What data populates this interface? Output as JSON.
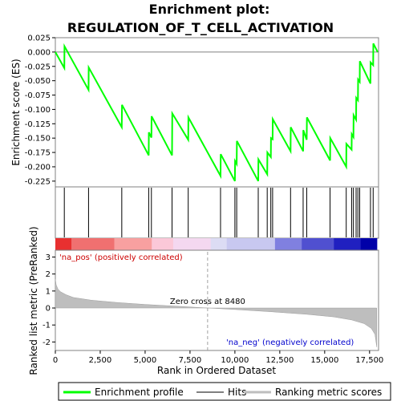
{
  "chart_data": {
    "type": "line",
    "title_line1": "Enrichment plot:",
    "title_line2": "REGULATION_OF_T_CELL_ACTIVATION",
    "top_panel": {
      "ylabel": "Enrichment score (ES)",
      "ylim": [
        -0.235,
        0.025
      ],
      "yticks": [
        0.025,
        0.0,
        -0.025,
        -0.05,
        -0.075,
        -0.1,
        -0.125,
        -0.15,
        -0.175,
        -0.2,
        -0.225
      ],
      "ytick_labels": [
        "0.025",
        "0.000",
        "-0.025",
        "-0.050",
        "-0.075",
        "-0.100",
        "-0.125",
        "-0.150",
        "-0.175",
        "-0.200",
        "-0.225"
      ],
      "series": [
        {
          "name": "Enrichment profile",
          "color": "#00ff00",
          "x": [
            0,
            500,
            510,
            1850,
            1860,
            3700,
            3710,
            5200,
            5210,
            5350,
            5360,
            6500,
            6510,
            7400,
            7410,
            9200,
            9210,
            10000,
            10010,
            10100,
            10110,
            11300,
            11310,
            11800,
            11810,
            12000,
            12010,
            12100,
            12110,
            13100,
            13110,
            13800,
            13810,
            14000,
            14010,
            15300,
            15310,
            16200,
            16210,
            16500,
            16510,
            16600,
            16610,
            16750,
            16760,
            16850,
            16860,
            16950,
            16960,
            17550,
            17560,
            17700,
            17710,
            17950
          ],
          "y": [
            0.0,
            -0.028,
            0.01,
            -0.066,
            -0.027,
            -0.131,
            -0.092,
            -0.18,
            -0.14,
            -0.149,
            -0.112,
            -0.18,
            -0.107,
            -0.153,
            -0.114,
            -0.216,
            -0.178,
            -0.225,
            -0.19,
            -0.195,
            -0.155,
            -0.225,
            -0.187,
            -0.213,
            -0.175,
            -0.183,
            -0.15,
            -0.152,
            -0.117,
            -0.173,
            -0.131,
            -0.173,
            -0.136,
            -0.153,
            -0.114,
            -0.189,
            -0.15,
            -0.2,
            -0.16,
            -0.17,
            -0.143,
            -0.148,
            -0.11,
            -0.118,
            -0.08,
            -0.084,
            -0.048,
            -0.052,
            -0.016,
            -0.055,
            -0.018,
            -0.023,
            0.015,
            0.0
          ]
        }
      ]
    },
    "hits": [
      500,
      1850,
      3700,
      5200,
      5350,
      6500,
      7400,
      9200,
      10000,
      10100,
      11300,
      11800,
      12000,
      12100,
      13100,
      13800,
      14000,
      15300,
      16200,
      16500,
      16600,
      16750,
      16850,
      16950,
      17550,
      17700
    ],
    "bottom_panel": {
      "ylabel": "Ranked list metric (PreRanked)",
      "xlabel": "Rank in Ordered Dataset",
      "ylim": [
        -2.5,
        3.4
      ],
      "yticks": [
        3,
        2,
        1,
        0,
        -1,
        -2
      ],
      "ytick_labels": [
        "3",
        "2",
        "1",
        "0",
        "-1",
        "-2"
      ],
      "xlim": [
        0,
        18000
      ],
      "xticks": [
        0,
        2500,
        5000,
        7500,
        10000,
        12500,
        15000,
        17500
      ],
      "xtick_labels": [
        "0",
        "2,500",
        "5,000",
        "7,500",
        "10,000",
        "12,500",
        "15,000",
        "17,500"
      ],
      "metric_x": [
        0,
        50,
        150,
        300,
        600,
        1000,
        2000,
        3500,
        5000,
        7000,
        8480,
        10000,
        12000,
        14000,
        15500,
        16500,
        17200,
        17600,
        17800,
        17900
      ],
      "metric_y": [
        1.7,
        1.35,
        1.1,
        0.95,
        0.78,
        0.62,
        0.46,
        0.32,
        0.21,
        0.09,
        0.0,
        -0.09,
        -0.22,
        -0.37,
        -0.52,
        -0.7,
        -0.92,
        -1.2,
        -1.55,
        -2.3
      ],
      "fill_color": "#bebebe",
      "zero_cross_label": "Zero cross at 8480",
      "zero_cross": 8480,
      "pos_label": "'na_pos' (positively correlated)",
      "neg_label": "'na_neg' (negatively correlated)",
      "pos_color": "#ff0000",
      "neg_color": "#0000ff"
    },
    "legend": [
      {
        "label": "Enrichment profile",
        "color": "#00ff00"
      },
      {
        "label": "Hits",
        "color": "#000000"
      },
      {
        "label": "Ranking metric scores",
        "color": "#bebebe"
      }
    ]
  }
}
